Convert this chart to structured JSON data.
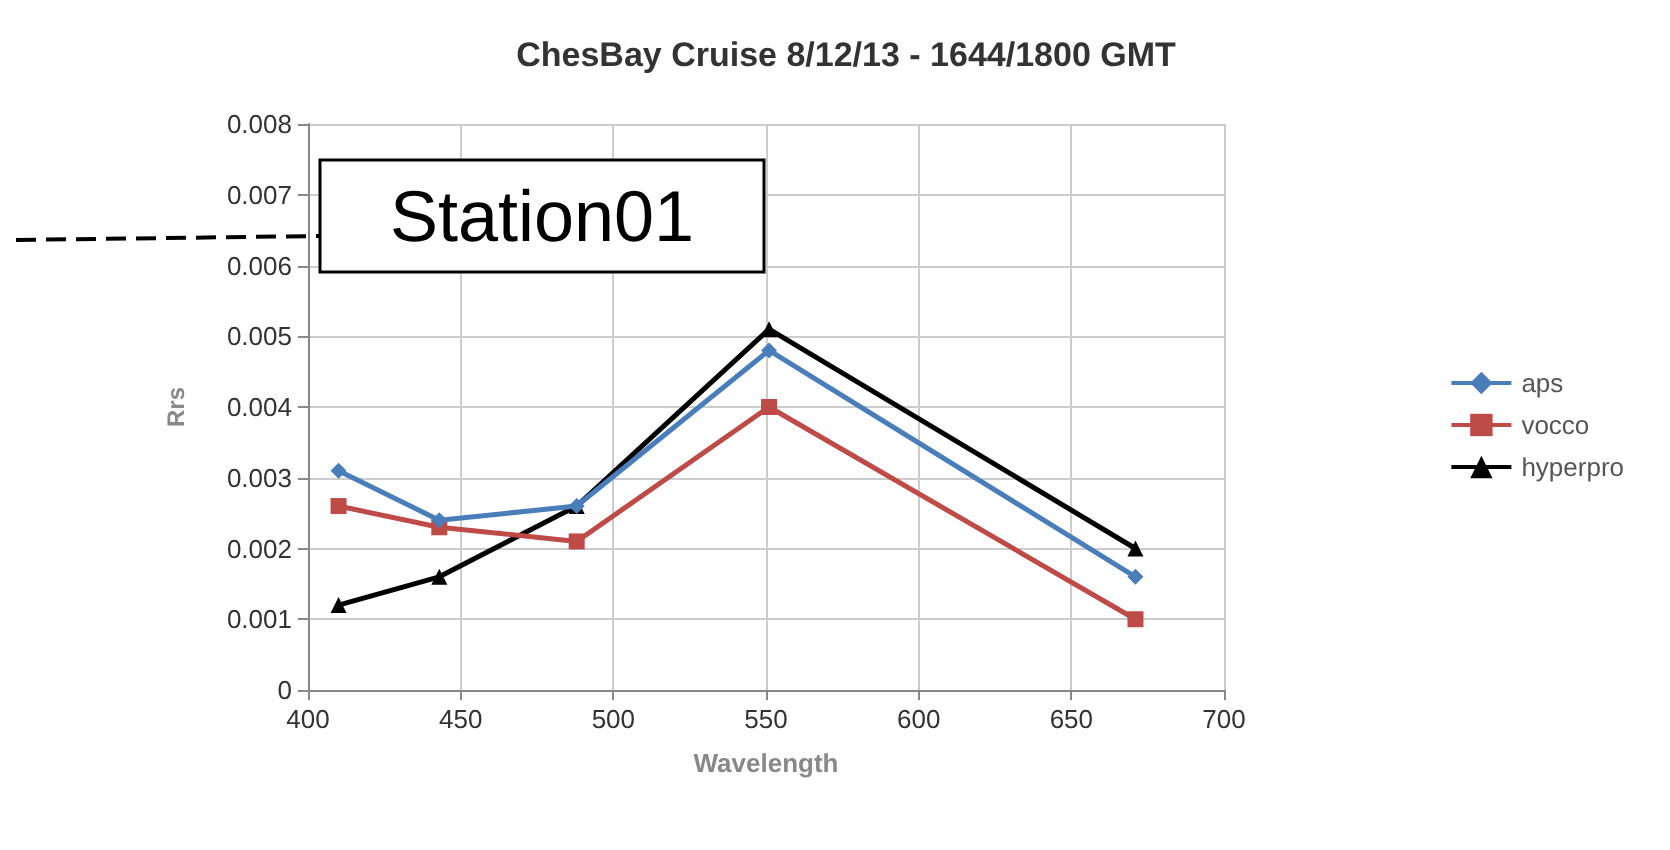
{
  "chart_data": {
    "type": "line",
    "title": "ChesBay Cruise 8/12/13 - 1644/1800 GMT",
    "xlabel": "Wavelength",
    "ylabel": "Rrs",
    "annotations": [
      "Station01"
    ],
    "x": [
      410,
      443,
      488,
      551,
      671
    ],
    "series": [
      {
        "name": "aps",
        "color": "#4a7ebb",
        "marker": "diamond",
        "values": [
          0.0031,
          0.0024,
          0.0026,
          0.0048,
          0.0016
        ]
      },
      {
        "name": "vocco",
        "color": "#be4b48",
        "marker": "square",
        "values": [
          0.0026,
          0.0023,
          0.0021,
          0.004,
          0.001
        ]
      },
      {
        "name": "hyperpro",
        "color": "#000000",
        "marker": "triangle",
        "values": [
          0.0012,
          0.0016,
          0.0026,
          0.0051,
          0.002
        ]
      }
    ],
    "xlim": [
      400,
      700
    ],
    "xticks": [
      400,
      450,
      500,
      550,
      600,
      650,
      700
    ],
    "ylim": [
      0,
      0.008
    ],
    "yticks": [
      0,
      0.001,
      0.002,
      0.003,
      0.004,
      0.005,
      0.006,
      0.007,
      0.008
    ],
    "grid": true,
    "legend": "right",
    "line_style": "solid"
  }
}
